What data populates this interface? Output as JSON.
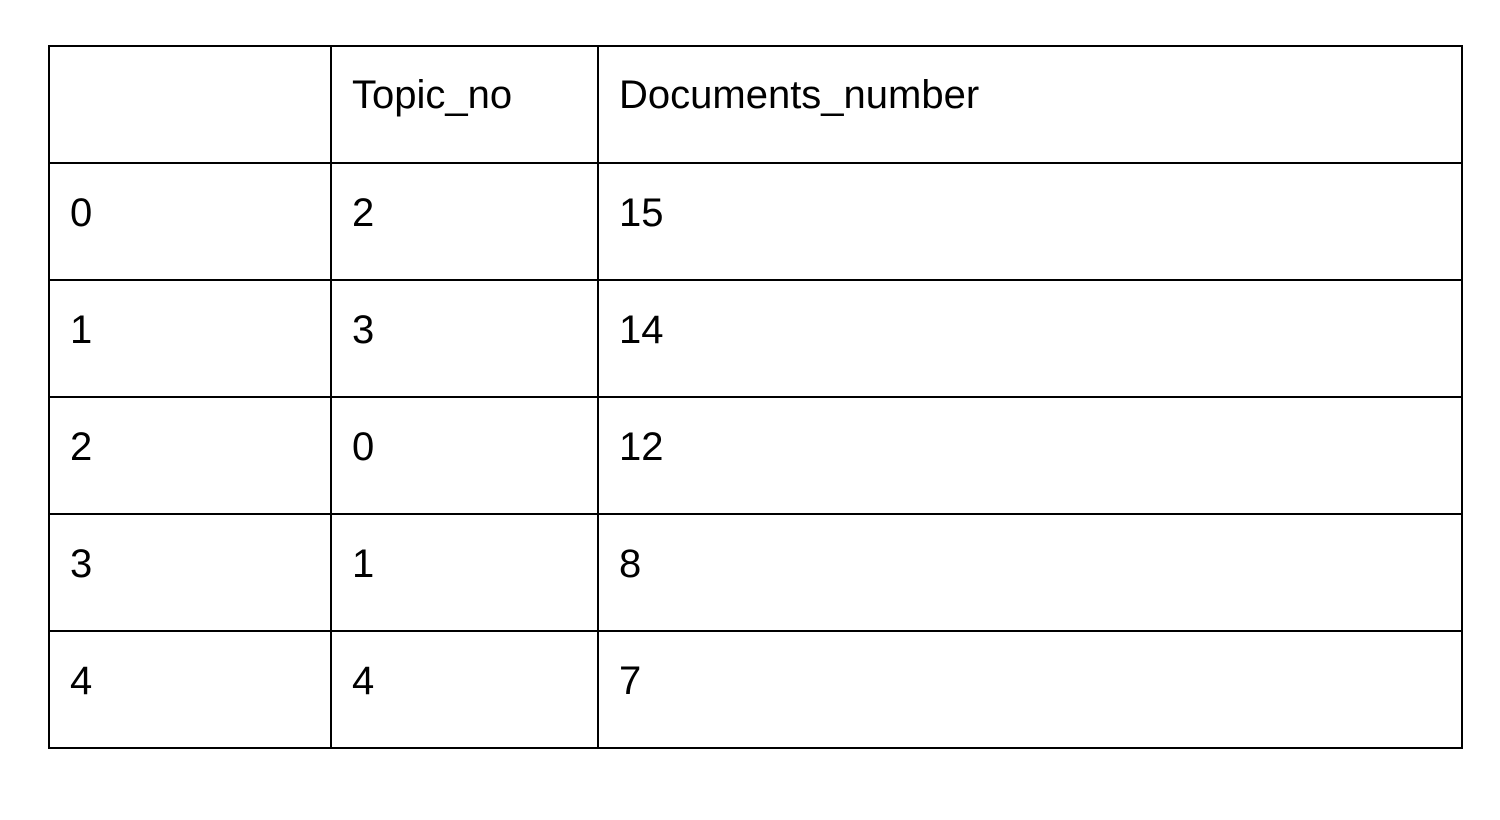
{
  "table": {
    "columns": [
      "",
      "Topic_no",
      "Documents_number"
    ],
    "rows": [
      [
        "0",
        "2",
        "15"
      ],
      [
        "1",
        "3",
        "14"
      ],
      [
        "2",
        "0",
        "12"
      ],
      [
        "3",
        "1",
        "8"
      ],
      [
        "4",
        "4",
        "7"
      ]
    ]
  }
}
